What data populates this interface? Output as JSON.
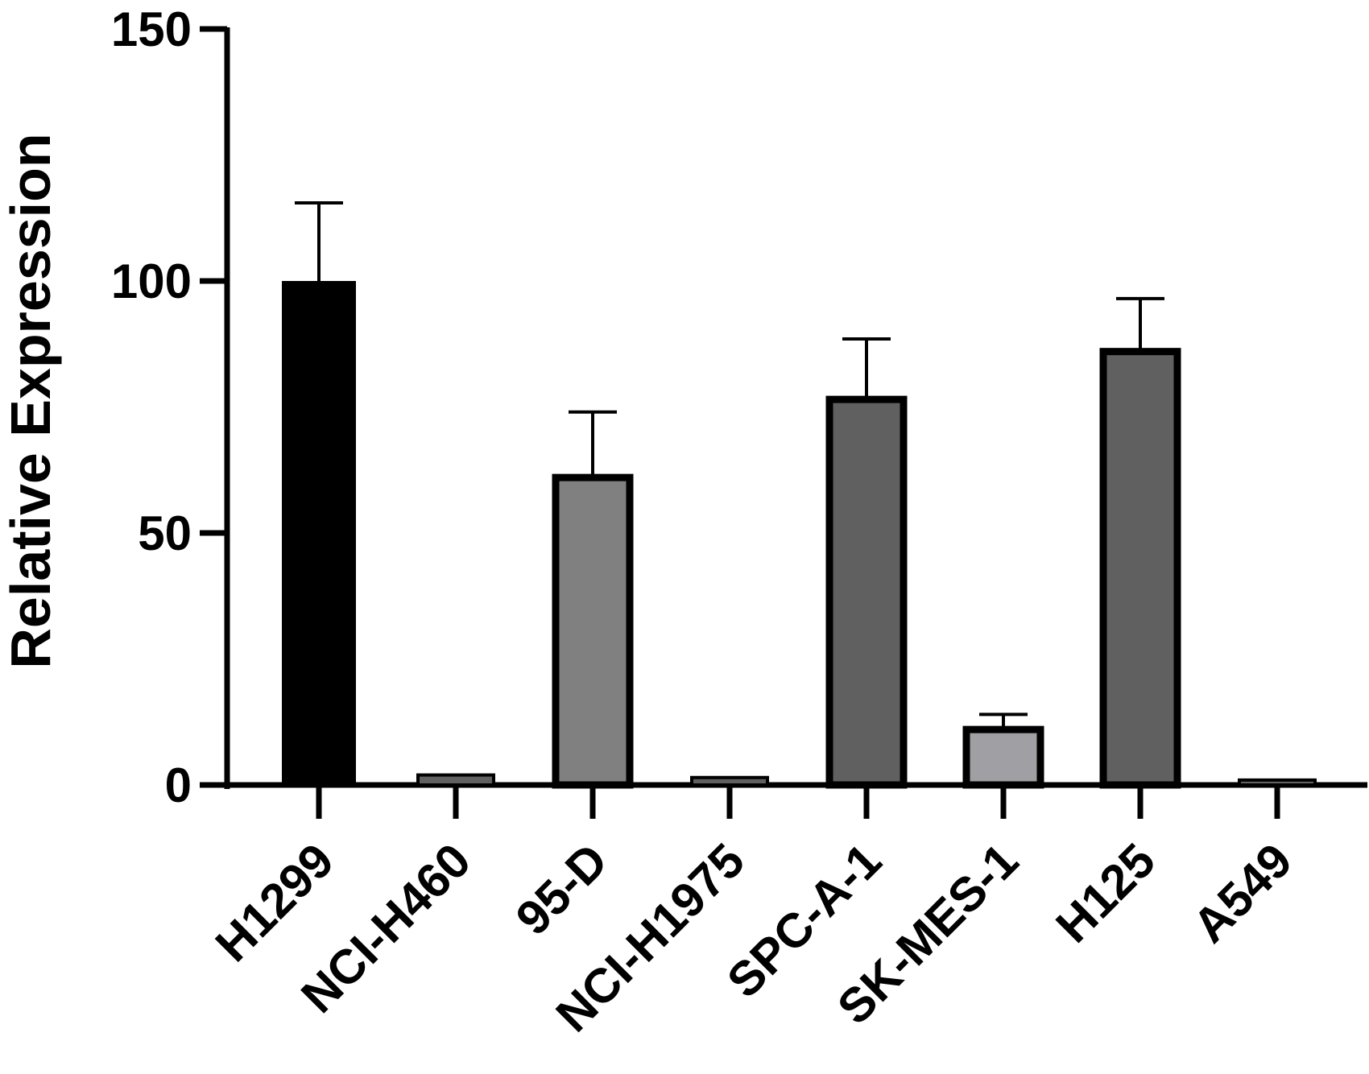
{
  "chart_data": {
    "type": "bar",
    "title": "",
    "xlabel": "",
    "ylabel": "Relative Expression",
    "ylim": [
      0,
      150
    ],
    "yticks": [
      0,
      50,
      100,
      150
    ],
    "ytick_labels": [
      "0",
      "50",
      "100",
      "150"
    ],
    "categories": [
      "H1299",
      "NCI-H460",
      "95-D",
      "NCI-H1975",
      "SPC-A-1",
      "SK-MES-1",
      "H125",
      "A549"
    ],
    "values": [
      100,
      1.5,
      61,
      1.0,
      76.5,
      11,
      86,
      0.5
    ],
    "errors": [
      15.5,
      0.3,
      13,
      0.2,
      12,
      3,
      10.5,
      0.2
    ],
    "bar_colors": [
      "#000000",
      "#606060",
      "#808080",
      "#606060",
      "#606060",
      "#a0a0a4",
      "#606060",
      "#606060"
    ],
    "grid": false,
    "legend": "none"
  }
}
